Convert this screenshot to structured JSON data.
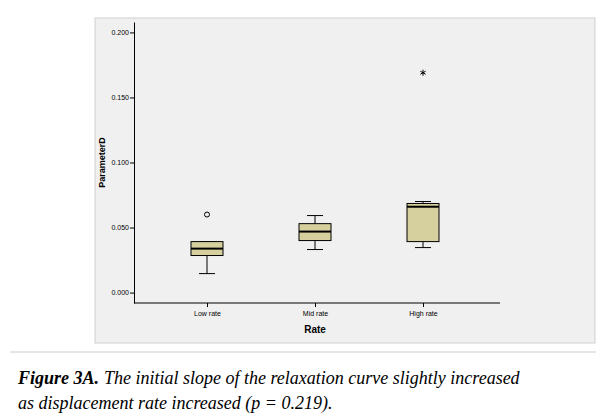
{
  "chart_data": {
    "type": "box",
    "x_label": "Rate",
    "y_label": "ParameterD",
    "categories": [
      "Low rate",
      "Mid rate",
      "High rate"
    ],
    "boxes": [
      {
        "whislo": 0.0146,
        "q1": 0.0285,
        "med": 0.0338,
        "q3": 0.0392,
        "whishi": 0.0392,
        "outliers": [
          0.06
        ],
        "extremes": []
      },
      {
        "whislo": 0.0331,
        "q1": 0.04,
        "med": 0.0469,
        "q3": 0.053,
        "whishi": 0.0592,
        "outliers": [],
        "extremes": []
      },
      {
        "whislo": 0.0346,
        "q1": 0.0392,
        "med": 0.066,
        "q3": 0.0685,
        "whishi": 0.07,
        "outliers": [],
        "extremes": [
          0.169
        ]
      }
    ],
    "color": "#d6cf9e",
    "ylim": [
      -0.008,
      0.208
    ],
    "yticks": [
      {
        "value": 0,
        "label": "0.000"
      },
      {
        "value": 0.05,
        "label": "0.050"
      },
      {
        "value": 0.1,
        "label": "0.100"
      },
      {
        "value": 0.15,
        "label": "0.150"
      },
      {
        "value": 0.2,
        "label": "0.200"
      }
    ],
    "grid": false,
    "caption": {
      "label": "Figure 3A.",
      "lines": [
        "The initial slope of the relaxation curve slightly increased",
        "as displacement rate increased (p = 0.219)."
      ]
    }
  }
}
